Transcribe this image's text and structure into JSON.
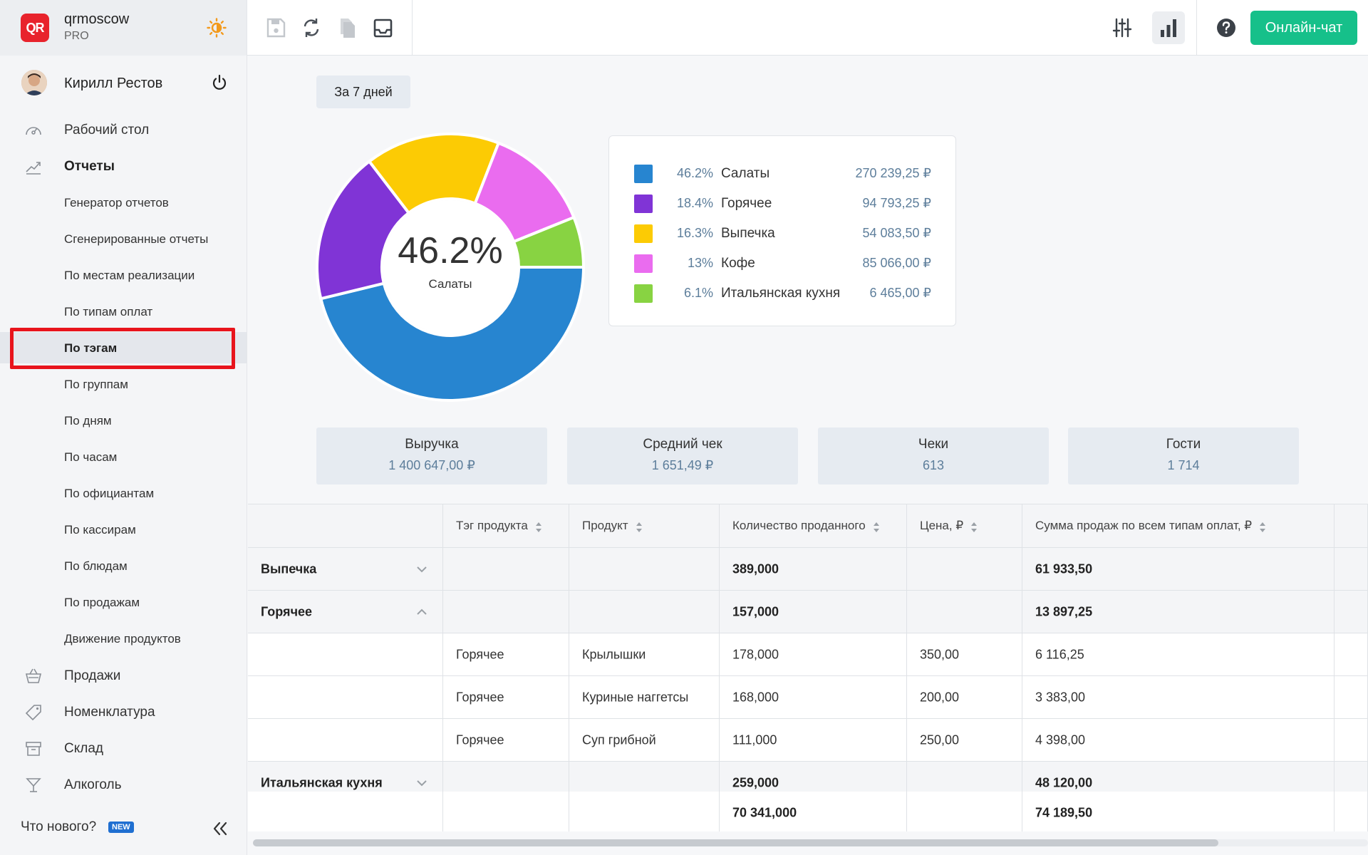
{
  "brand": {
    "name": "qrmoscow",
    "plan": "PRO",
    "logo_text": "QR"
  },
  "user": {
    "name": "Кирилл Рестов"
  },
  "nav": {
    "dashboard": "Рабочий стол",
    "reports": "Отчеты",
    "report_items": [
      "Генератор отчетов",
      "Сгенерированные отчеты",
      "По местам реализации",
      "По типам оплат",
      "По тэгам",
      "По группам",
      "По дням",
      "По часам",
      "По официантам",
      "По кассирам",
      "По блюдам",
      "По продажам",
      "Движение продуктов"
    ],
    "active_report": "По тэгам",
    "sales": "Продажи",
    "nomenclature": "Номенклатура",
    "warehouse": "Склад",
    "alcohol": "Алкоголь",
    "whats_new": "Что нового?",
    "new_badge": "NEW"
  },
  "topbar": {
    "online_chat": "Онлайн-чат",
    "icons": [
      "save-icon",
      "refresh-icon",
      "copy-icon",
      "inbox-icon",
      "filter-sliders-icon",
      "bar-chart-icon",
      "help-icon"
    ]
  },
  "period": "За 7 дней",
  "chart_data": {
    "type": "pie",
    "donut": true,
    "center_value": "46.2%",
    "center_label": "Салаты",
    "slices": [
      {
        "name": "Салаты",
        "percent": 46.2,
        "percent_label": "46.2%",
        "value": "270 239,25 ₽",
        "color": "#2785d0"
      },
      {
        "name": "Горячее",
        "percent": 18.4,
        "percent_label": "18.4%",
        "value": "94 793,25 ₽",
        "color": "#8034d6"
      },
      {
        "name": "Выпечка",
        "percent": 16.3,
        "percent_label": "16.3%",
        "value": "54 083,50 ₽",
        "color": "#fccb04"
      },
      {
        "name": "Кофе",
        "percent": 13,
        "percent_label": "13%",
        "value": "85 066,00 ₽",
        "color": "#ea6cef"
      },
      {
        "name": "Итальянская кухня",
        "percent": 6.1,
        "percent_label": "6.1%",
        "value": "6 465,00 ₽",
        "color": "#88d342"
      }
    ]
  },
  "kpis": [
    {
      "label": "Выручка",
      "value": "1 400 647,00 ₽"
    },
    {
      "label": "Средний чек",
      "value": "1 651,49 ₽"
    },
    {
      "label": "Чеки",
      "value": "613"
    },
    {
      "label": "Гости",
      "value": "1 714"
    }
  ],
  "table": {
    "headers": [
      "",
      "Тэг продукта",
      "Продукт",
      "Количество проданного",
      "Цена, ₽",
      "Сумма продаж по всем типам оплат, ₽"
    ],
    "rows": [
      {
        "kind": "group",
        "expanded": false,
        "cells": [
          "Выпечка",
          "",
          "",
          "389,000",
          "",
          "61 933,50"
        ]
      },
      {
        "kind": "group",
        "expanded": true,
        "cells": [
          "Горячее",
          "",
          "",
          "157,000",
          "",
          "13 897,25"
        ]
      },
      {
        "kind": "detail",
        "cells": [
          "",
          "Горячее",
          "Крылышки",
          "178,000",
          "350,00",
          "6 116,25"
        ]
      },
      {
        "kind": "detail",
        "cells": [
          "",
          "Горячее",
          "Куриные наггетсы",
          "168,000",
          "200,00",
          "3 383,00"
        ]
      },
      {
        "kind": "detail",
        "cells": [
          "",
          "Горячее",
          "Суп грибной",
          "111,000",
          "250,00",
          "4 398,00"
        ]
      },
      {
        "kind": "group",
        "expanded": false,
        "cells": [
          "Итальянская кухня",
          "",
          "",
          "259,000",
          "",
          "48 120,00"
        ]
      }
    ],
    "totals": [
      "",
      "",
      "",
      "70 341,000",
      "",
      "74 189,50"
    ]
  }
}
